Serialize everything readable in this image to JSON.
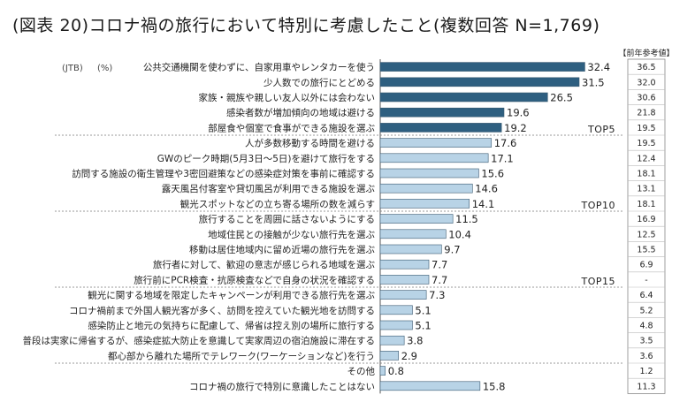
{
  "title": "(図表 20)コロナ禍の旅行において特別に考慮したこと(複数回答 N=1,769)",
  "units": {
    "source": "(JTB)",
    "percent": "(%)"
  },
  "prev_header": "【前年参考値】",
  "top_markers": [
    "TOP5",
    "TOP10",
    "TOP15"
  ],
  "colors": {
    "top5": "#2e5f80",
    "rest": "#b8d3e6",
    "bar_stroke": "#3b5b72"
  },
  "chart_data": {
    "type": "bar",
    "orientation": "horizontal",
    "title": "(図表 20)コロナ禍の旅行において特別に考慮したこと(複数回答 N=1,769)",
    "xlim": [
      0,
      35
    ],
    "categories": [
      "公共交通機関を使わずに、自家用車やレンタカーを使う",
      "少人数での旅行にとどめる",
      "家族・親族や親しい友人以外には会わない",
      "感染者数が増加傾向の地域は避ける",
      "部屋食や個室で食事ができる施設を選ぶ",
      "人が多数移動する時間を避ける",
      "GWのピーク時期(5月3日～5日)を避けて旅行をする",
      "訪問する施設の衛生管理や3密回避策などの感染症対策を事前に確認する",
      "露天風呂付客室や貸切風呂が利用できる施設を選ぶ",
      "観光スポットなどの立ち寄る場所の数を減らす",
      "旅行することを周囲に話さないようにする",
      "地域住民との接触が少ない旅行先を選ぶ",
      "移動は居住地域内に留め近場の旅行先を選ぶ",
      "旅行者に対して、歓迎の意志が感じられる地域を選ぶ",
      "旅行前にPCR検査・抗原検査などで自身の状況を確認する",
      "観光に関する地域を限定したキャンペーンが利用できる旅行先を選ぶ",
      "コロナ禍前まで外国人観光客が多く、訪問を控えていた観光地を訪問する",
      "感染防止と地元の気持ちに配慮して、帰省は控え別の場所に旅行する",
      "普段は実家に帰省するが、感染症拡大防止を意識して実家周辺の宿泊施設に滞在する",
      "都心部から離れた場所でテレワーク(ワーケーションなど)を行う",
      "その他",
      "コロナ禍の旅行で特別に意識したことはない"
    ],
    "values": [
      32.4,
      31.5,
      26.5,
      19.6,
      19.2,
      17.6,
      17.1,
      15.6,
      14.6,
      14.1,
      11.5,
      10.4,
      9.7,
      7.7,
      7.7,
      7.3,
      5.1,
      5.1,
      3.8,
      2.9,
      0.8,
      15.8
    ],
    "prev_values": [
      "36.5",
      "32.0",
      "30.6",
      "21.8",
      "19.5",
      "19.5",
      "12.4",
      "18.1",
      "13.1",
      "18.1",
      "16.9",
      "12.5",
      "15.5",
      "6.9",
      "-",
      "6.4",
      "5.2",
      "4.8",
      "3.5",
      "3.6",
      "1.2",
      "11.3"
    ]
  }
}
